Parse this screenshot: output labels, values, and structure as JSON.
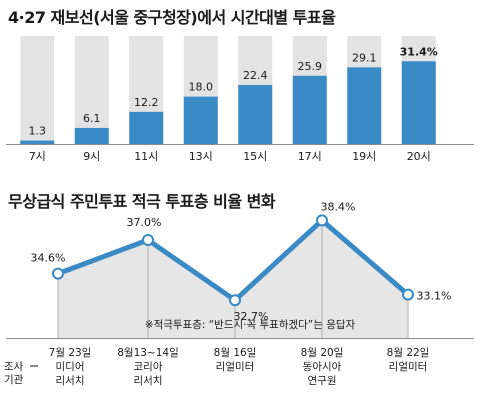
{
  "chart_data": [
    {
      "type": "bar",
      "title": "4·27 재보선(서울 중구청장)에서 시간대별 투표율",
      "categories": [
        "7시",
        "9시",
        "11시",
        "13시",
        "15시",
        "17시",
        "19시",
        "20시"
      ],
      "values": [
        1.3,
        6.1,
        12.2,
        18.0,
        22.4,
        25.9,
        29.1,
        31.4
      ],
      "value_labels": [
        "1.3",
        "6.1",
        "12.2",
        "18.0",
        "22.4",
        "25.9",
        "29.1",
        "31.4%"
      ],
      "ylim": [
        0,
        41
      ],
      "bar_color": "#3a8ac6",
      "track_color": "#e3e3e3"
    },
    {
      "type": "line",
      "title": "무상급식 주민투표 적극 투표층 비율 변화",
      "note": "※적극투표층: “반드시·꼭 투표하겠다”는 응답자",
      "x_label_header": [
        "조사",
        "기관"
      ],
      "points": [
        {
          "date": "7월 23일",
          "org": [
            "미디어",
            "리서치"
          ],
          "value": 34.6,
          "label": "34.6%"
        },
        {
          "date": "8월13~14일",
          "org": [
            "코리아",
            "리서치"
          ],
          "value": 37.0,
          "label": "37.0%"
        },
        {
          "date": "8월 16일",
          "org": [
            "리얼미터"
          ],
          "value": 32.7,
          "label": "32.7%"
        },
        {
          "date": "8월 20일",
          "org": [
            "동아시아",
            "연구원"
          ],
          "value": 38.4,
          "label": "38.4%"
        },
        {
          "date": "8월 22일",
          "org": [
            "리얼미터"
          ],
          "value": 33.1,
          "label": "33.1%"
        }
      ],
      "ylim": [
        32.0,
        39.0
      ],
      "line_color": "#3a8ac6",
      "fill_color": "#e6e6e6"
    }
  ]
}
